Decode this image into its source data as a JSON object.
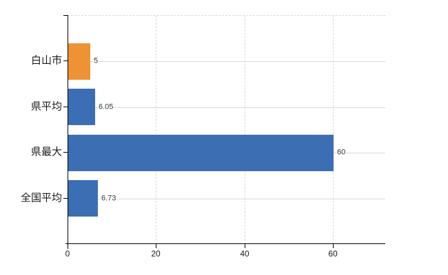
{
  "chart_data": {
    "type": "bar",
    "orientation": "horizontal",
    "title": "",
    "xlabel": "",
    "ylabel": "",
    "categories": [
      "白山市",
      "県平均",
      "県最大",
      "全国平均"
    ],
    "values": [
      5,
      6.05,
      60,
      6.73
    ],
    "value_labels": [
      "5",
      "6.05",
      "60",
      "6.73"
    ],
    "x_ticks": [
      0,
      20,
      40,
      60
    ],
    "x_tick_labels": [
      "0",
      "20",
      "40",
      "60"
    ],
    "xlim": [
      0,
      71.8
    ],
    "grid": true,
    "legend": false,
    "bar_colors": [
      "#EE9335",
      "#3C6EB4",
      "#3C6EB4",
      "#3C6EB4"
    ],
    "colors": {
      "highlight_orange": "#EE9335",
      "base_blue": "#3C6EB4",
      "grid_horizontal": "#D5DBD5",
      "grid_vertical": "#D7D7D7",
      "axis": "#000000",
      "value_text": "#333333",
      "label_text": "#1A1A1A"
    }
  }
}
